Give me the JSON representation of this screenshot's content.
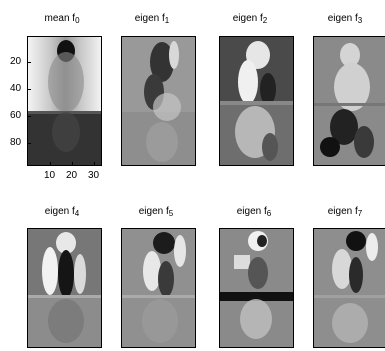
{
  "panels": [
    {
      "title_prefix": "mean f",
      "title_sub": "0"
    },
    {
      "title_prefix": "eigen f",
      "title_sub": "1"
    },
    {
      "title_prefix": "eigen f",
      "title_sub": "2"
    },
    {
      "title_prefix": "eigen f",
      "title_sub": "3"
    },
    {
      "title_prefix": "eigen f",
      "title_sub": "4"
    },
    {
      "title_prefix": "eigen f",
      "title_sub": "5"
    },
    {
      "title_prefix": "eigen f",
      "title_sub": "6"
    },
    {
      "title_prefix": "eigen f",
      "title_sub": "7"
    }
  ],
  "axes": {
    "y_ticks": [
      "20",
      "40",
      "60",
      "80"
    ],
    "x_ticks": [
      "10",
      "20",
      "30"
    ]
  }
}
